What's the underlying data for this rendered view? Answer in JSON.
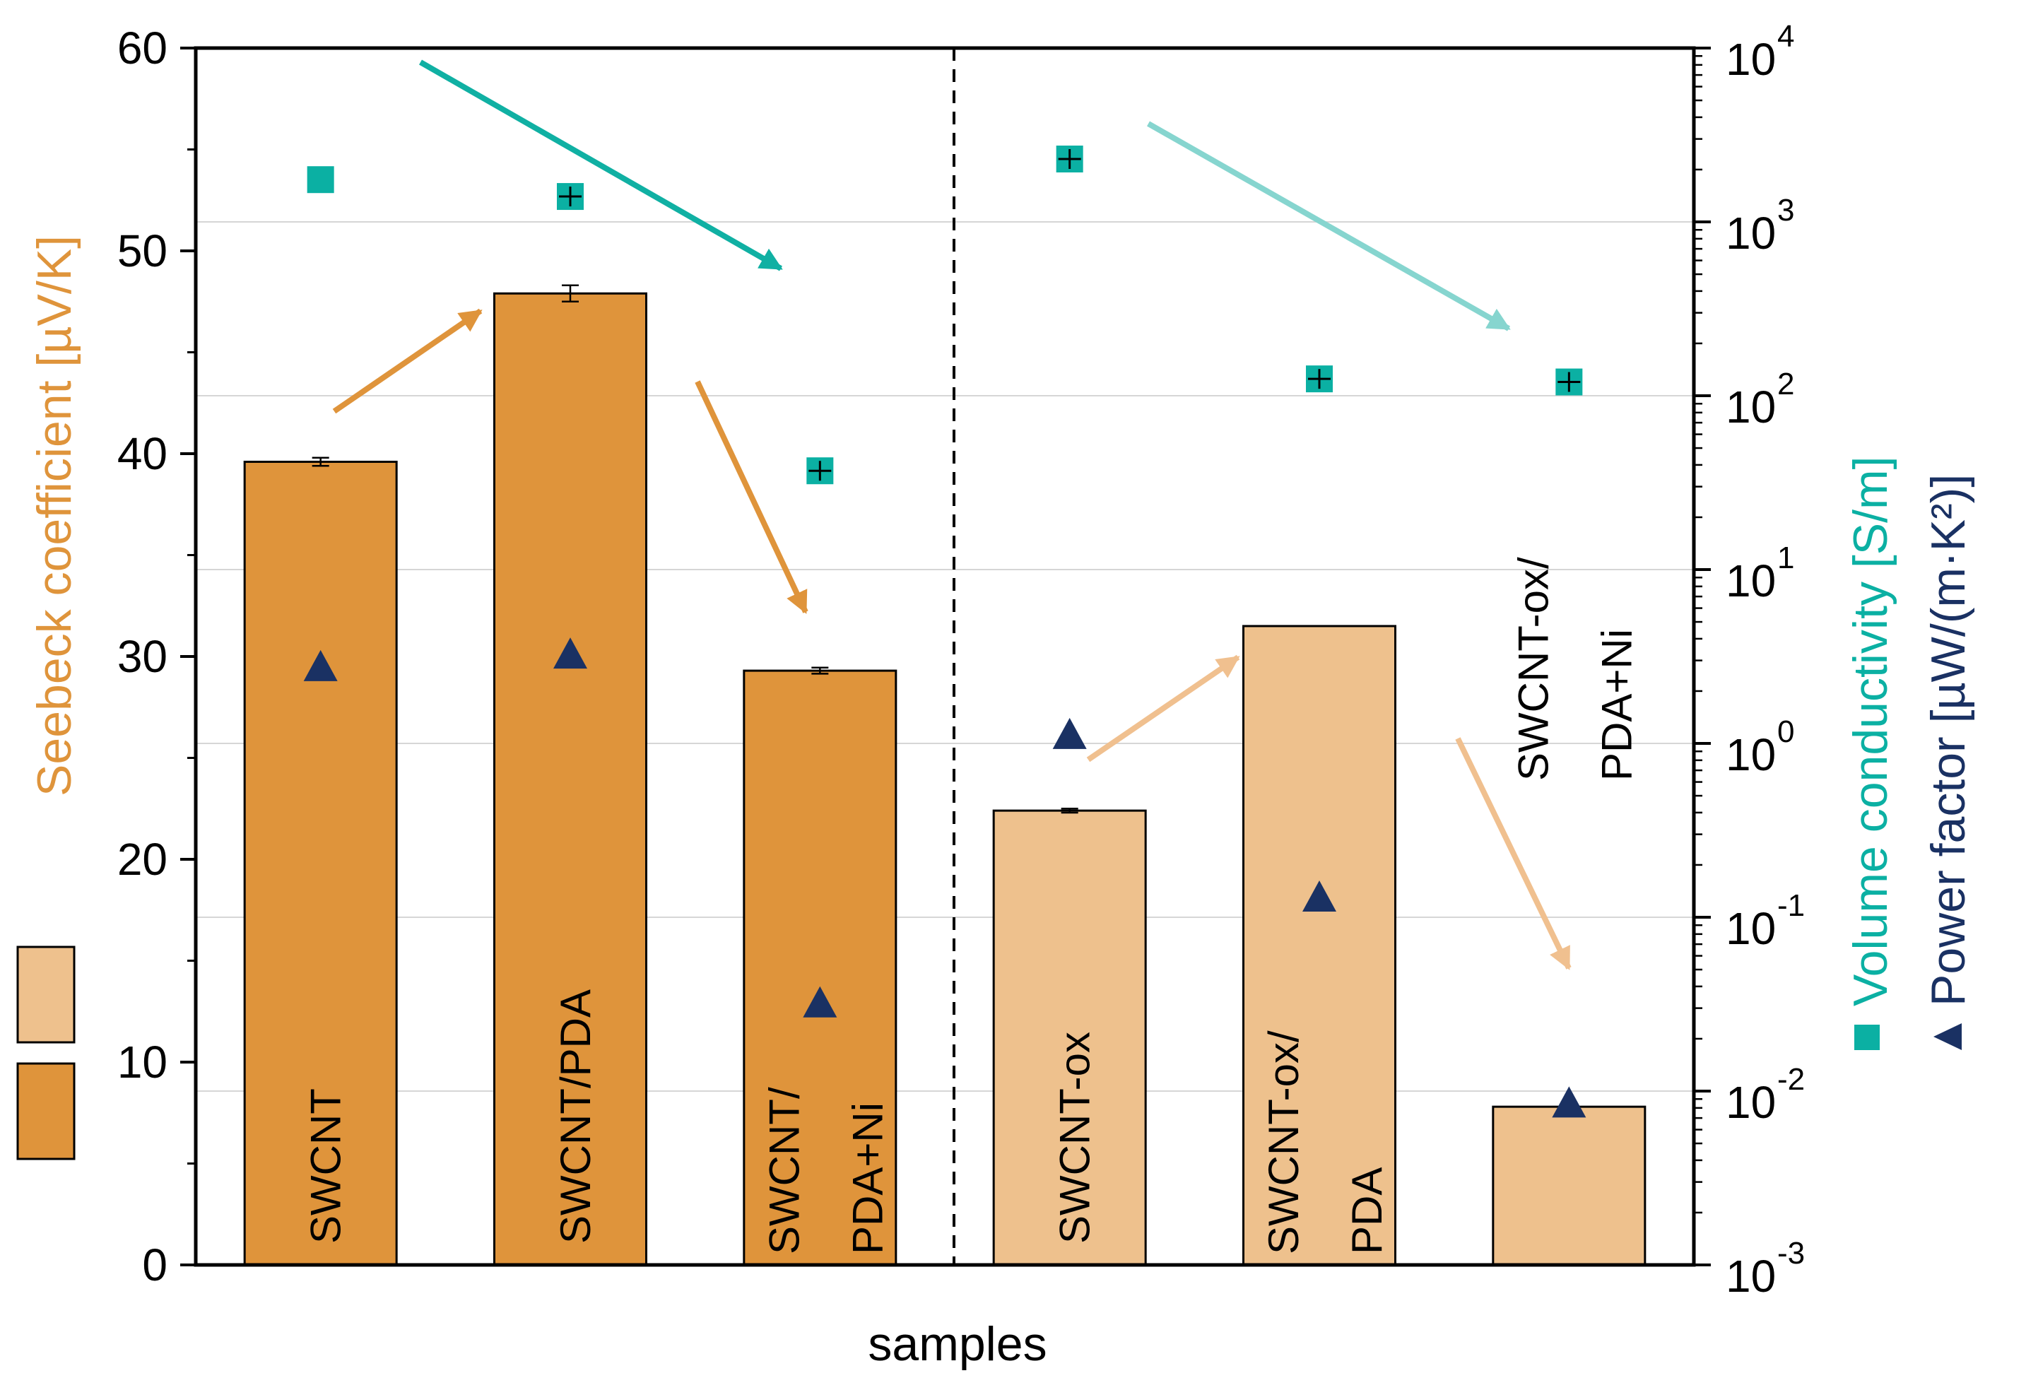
{
  "chart_data": {
    "type": "bar",
    "title": "",
    "xlabel": "samples",
    "ylabel": "Seebeck coefficient [µV/K]",
    "ylim": [
      0,
      60
    ],
    "yticks": [
      "0",
      "10",
      "20",
      "30",
      "40",
      "50",
      "60"
    ],
    "y2label_conductivity": "Volume conductivity [S/m]",
    "y2label_powerfactor": "Power factor [µW/(m·K²)]",
    "y2_scale": "log",
    "y2lim": [
      0.001,
      10000
    ],
    "y2ticks": [
      {
        "base": "10",
        "exp": "-3"
      },
      {
        "base": "10",
        "exp": "-2"
      },
      {
        "base": "10",
        "exp": "-1"
      },
      {
        "base": "10",
        "exp": "0"
      },
      {
        "base": "10",
        "exp": "1"
      },
      {
        "base": "10",
        "exp": "2"
      },
      {
        "base": "10",
        "exp": "3"
      },
      {
        "base": "10",
        "exp": "4"
      }
    ],
    "categories": [
      {
        "line1": "SWCNT",
        "line2": ""
      },
      {
        "line1": "SWCNT/PDA",
        "line2": ""
      },
      {
        "line1": "SWCNT/",
        "line2": "PDA+Ni"
      },
      {
        "line1": "SWCNT-ox",
        "line2": ""
      },
      {
        "line1": "SWCNT-ox/",
        "line2": "PDA"
      },
      {
        "line1": "SWCNT-ox/",
        "line2": "PDA+Ni"
      }
    ],
    "series": [
      {
        "name": "Seebeck coefficient",
        "axis": "left",
        "values": [
          39.6,
          47.9,
          29.3,
          22.4,
          31.5,
          7.8
        ],
        "errors": [
          0.2,
          0.4,
          0.15,
          0.1,
          null,
          null
        ]
      },
      {
        "name": "Volume conductivity",
        "axis": "right",
        "marker": "square",
        "values": [
          1750,
          1400,
          37,
          2300,
          125,
          120
        ]
      },
      {
        "name": "Power factor",
        "axis": "right",
        "marker": "triangle",
        "values": [
          2.75,
          3.25,
          0.032,
          1.12,
          0.13,
          0.0085
        ]
      }
    ],
    "group_colors": [
      "#df943b",
      "#eec18d"
    ],
    "colors": {
      "seebeck": "#df943b",
      "conductivity": "#0bb0a3",
      "power_factor": "#1a3163",
      "arrow_dark_orange": "#df943b",
      "arrow_light_orange": "#f0c08f",
      "arrow_dark_teal": "#10b0a3",
      "arrow_light_teal": "#86d5cf"
    }
  }
}
